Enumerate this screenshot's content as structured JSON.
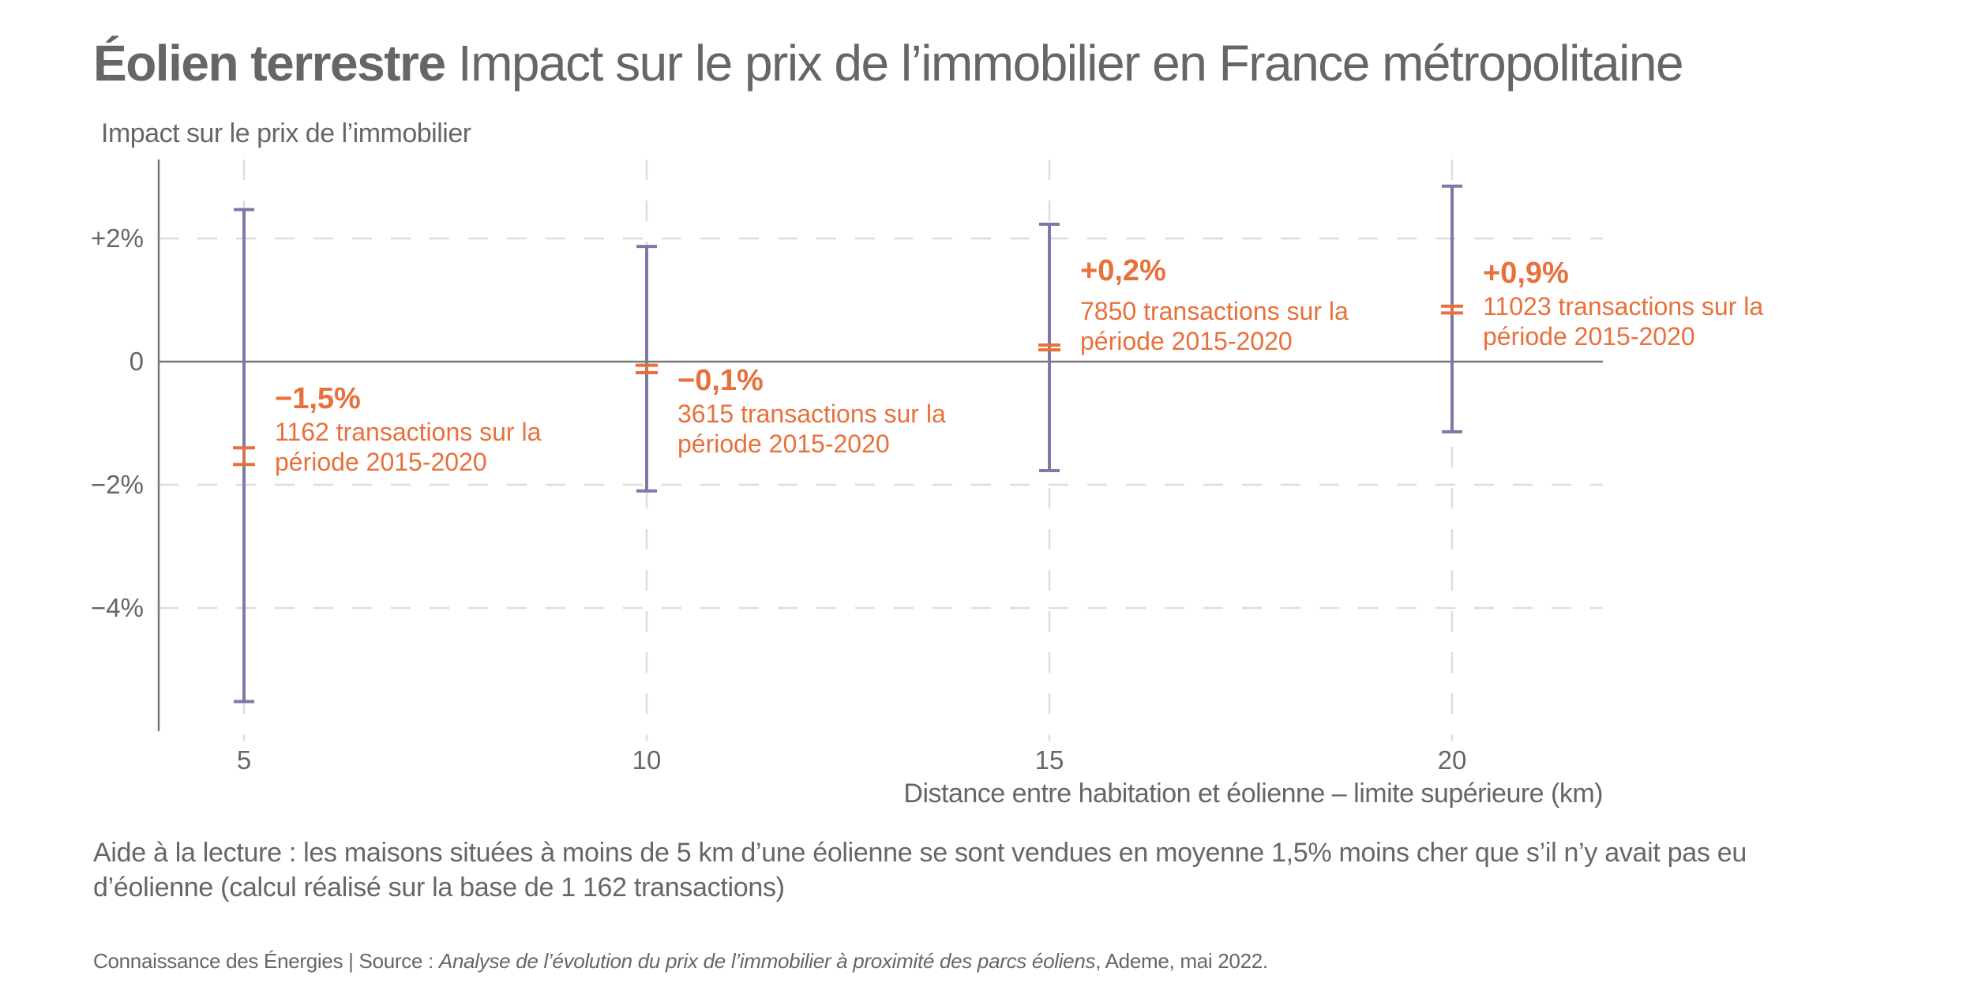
{
  "title": {
    "bold": "Éolien terrestre",
    "light": "Impact sur le prix de l’immobilier en France métropolitaine"
  },
  "colors": {
    "error_bar": "#7b7aa8",
    "estimate": "#e8703a",
    "text": "#666666",
    "grid": "#dddddd",
    "axis": "#777777"
  },
  "chart_data": {
    "type": "errorbar",
    "title": "Éolien terrestre Impact sur le prix de l’immobilier en France métropolitaine",
    "ylabel": "Impact sur le prix de l’immobilier",
    "xlabel": "Distance entre habitation et éolienne – limite supérieure (km)",
    "x_ticks": [
      {
        "value": 5,
        "label": "5"
      },
      {
        "value": 10,
        "label": "10"
      },
      {
        "value": 15,
        "label": "15"
      },
      {
        "value": 20,
        "label": "20"
      }
    ],
    "y_ticks": [
      {
        "value": 2,
        "label": "+2%"
      },
      {
        "value": 0,
        "label": "0"
      },
      {
        "value": -2,
        "label": "−2%"
      },
      {
        "value": -4,
        "label": "−4%"
      }
    ],
    "xlim": [
      3.9,
      22
    ],
    "ylim": [
      -6.0,
      3.2
    ],
    "grid": true,
    "points": [
      {
        "x": 5,
        "estimate": -1.5,
        "estimate_low": -1.67,
        "estimate_high": -1.4,
        "ci_low": -5.52,
        "ci_high": 2.47,
        "value_label": "−1,5%",
        "detail_line1": "1162 transactions sur la",
        "detail_line2": "période 2015-2020"
      },
      {
        "x": 10,
        "estimate": -0.1,
        "estimate_low": -0.18,
        "estimate_high": -0.06,
        "ci_low": -2.1,
        "ci_high": 1.87,
        "value_label": "−0,1%",
        "detail_line1": "3615 transactions sur la",
        "detail_line2": "période 2015-2020"
      },
      {
        "x": 15,
        "estimate": 0.2,
        "estimate_low": 0.19,
        "estimate_high": 0.27,
        "ci_low": -1.77,
        "ci_high": 2.23,
        "value_label": "+0,2%",
        "detail_line1": "7850 transactions sur la",
        "detail_line2": "période 2015-2020"
      },
      {
        "x": 20,
        "estimate": 0.9,
        "estimate_low": 0.79,
        "estimate_high": 0.9,
        "ci_low": -1.14,
        "ci_high": 2.85,
        "value_label": "+0,9%",
        "detail_line1": "11023 transactions sur la",
        "detail_line2": "période 2015-2020"
      }
    ]
  },
  "reading_aid": "Aide à la lecture : les maisons situées à moins de 5 km d’une éolienne se sont vendues en moyenne 1,5% moins cher que s’il n’y avait pas eu d’éolienne (calcul réalisé sur la base de 1 162 transactions)",
  "source": {
    "prefix": "Connaissance des Énergies | Source : ",
    "title": "Analyse de l’évolution du prix de l’immobilier à proximité des parcs éoliens",
    "suffix": ", Ademe, mai 2022."
  }
}
